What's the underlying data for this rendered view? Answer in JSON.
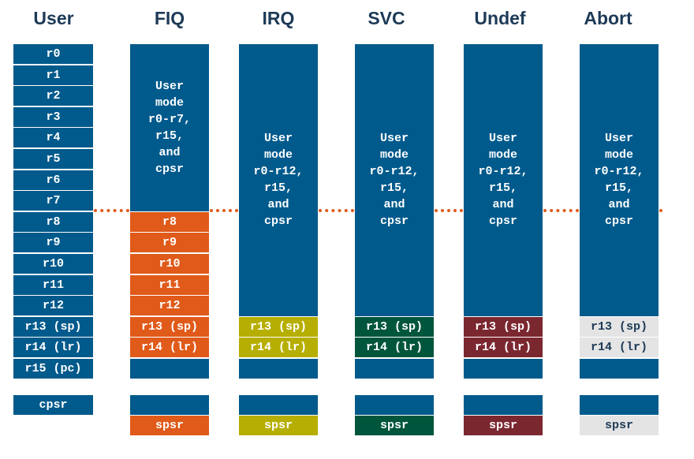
{
  "headers": [
    "User",
    "FIQ",
    "IRQ",
    "SVC",
    "Undef",
    "Abort"
  ],
  "user_registers": [
    "r0",
    "r1",
    "r2",
    "r3",
    "r4",
    "r5",
    "r6",
    "r7",
    "r8",
    "r9",
    "r10",
    "r11",
    "r12",
    "r13 (sp)",
    "r14 (lr)",
    "r15 (pc)"
  ],
  "user_cpsr": "cpsr",
  "fiq": {
    "shared_text": "User\nmode\nr0-r7,\nr15,\nand\ncpsr",
    "banked": [
      "r8",
      "r9",
      "r10",
      "r11",
      "r12",
      "r13 (sp)",
      "r14 (lr)"
    ],
    "spsr": "spsr"
  },
  "irq": {
    "shared_text": "User\nmode\nr0-r12,\nr15,\nand\ncpsr",
    "banked": [
      "r13 (sp)",
      "r14 (lr)"
    ],
    "spsr": "spsr"
  },
  "svc": {
    "shared_text": "User\nmode\nr0-r12,\nr15,\nand\ncpsr",
    "banked": [
      "r13 (sp)",
      "r14 (lr)"
    ],
    "spsr": "spsr"
  },
  "undef": {
    "shared_text": "User\nmode\nr0-r12,\nr15,\nand\ncpsr",
    "banked": [
      "r13 (sp)",
      "r14 (lr)"
    ],
    "spsr": "spsr"
  },
  "abort": {
    "shared_text": "User\nmode\nr0-r12,\nr15,\nand\ncpsr",
    "banked": [
      "r13 (sp)",
      "r14 (lr)"
    ],
    "spsr": "spsr"
  },
  "colors": {
    "bank_blue": "#005a8c",
    "fiq": "#e05a1a",
    "irq": "#b6ae00",
    "svc": "#00553d",
    "undef": "#7b2730",
    "abort": "#e4e4e4",
    "header_text": "#1d3a57"
  }
}
